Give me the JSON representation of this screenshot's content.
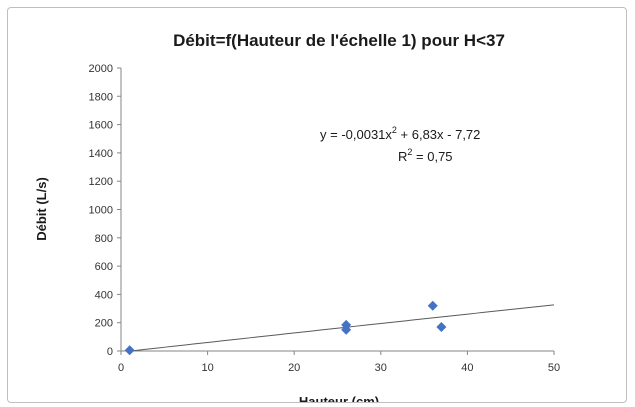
{
  "chart_data": {
    "type": "scatter",
    "title": "Débit=f(Hauteur de l'échelle 1) pour H<37",
    "xlabel": "Hauteur (cm)",
    "ylabel": "Débit (L/s)",
    "xlim": [
      0,
      50
    ],
    "ylim": [
      0,
      2000
    ],
    "x_ticks": [
      "0",
      "10",
      "20",
      "30",
      "40",
      "50"
    ],
    "y_ticks": [
      "0",
      "200",
      "400",
      "600",
      "800",
      "1000",
      "1200",
      "1400",
      "1600",
      "1800",
      "2000"
    ],
    "grid": false,
    "legend": "none",
    "series": [
      {
        "marker": "diamond",
        "color": "#4472C4",
        "points": [
          {
            "x": 1,
            "y": 5
          },
          {
            "x": 26,
            "y": 150
          },
          {
            "x": 26,
            "y": 185
          },
          {
            "x": 36,
            "y": 320
          },
          {
            "x": 37,
            "y": 170
          }
        ]
      }
    ],
    "trendline": {
      "type": "polynomial",
      "coefficients": {
        "a": -0.0031,
        "b": 6.83,
        "c": -7.72
      },
      "x_range": [
        1,
        50
      ],
      "color": "#595959"
    },
    "annotations": {
      "equation_prefix": "y = -0,0031x",
      "equation_exp": "2",
      "equation_suffix": " + 6,83x - 7,72",
      "r2_prefix": "R",
      "r2_exp": "2",
      "r2_suffix": " = 0,75"
    }
  }
}
